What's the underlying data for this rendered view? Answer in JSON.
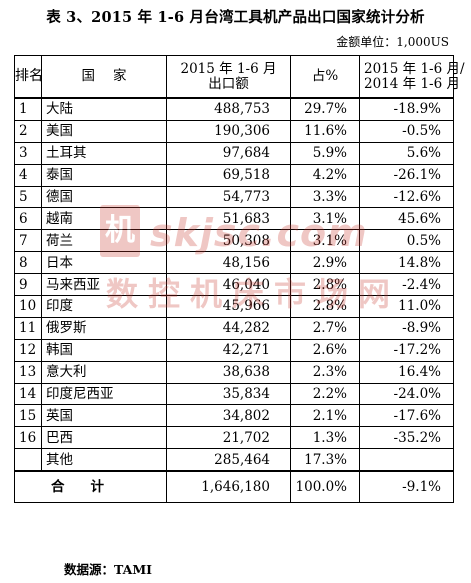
{
  "title": "表 3、2015 年 1-6 月台湾工具机产品出口国家统计分析",
  "unit_note": "金额单位：1,000US",
  "table": {
    "headers": {
      "rank": "排名",
      "country": "国家",
      "amount_line1": "2015 年 1-6 月",
      "amount_line2": "出口额",
      "share": "占%",
      "growth_line1": "2015 年 1-6 月/",
      "growth_line2": "2014 年 1-6 月"
    },
    "rows": [
      {
        "rank": "1",
        "country": "大陆",
        "amount": "488,753",
        "share": "29.7%",
        "growth": "-18.9%"
      },
      {
        "rank": "2",
        "country": "美国",
        "amount": "190,306",
        "share": "11.6%",
        "growth": "-0.5%"
      },
      {
        "rank": "3",
        "country": "土耳其",
        "amount": "97,684",
        "share": "5.9%",
        "growth": "5.6%"
      },
      {
        "rank": "4",
        "country": "泰国",
        "amount": "69,518",
        "share": "4.2%",
        "growth": "-26.1%"
      },
      {
        "rank": "5",
        "country": "德国",
        "amount": "54,773",
        "share": "3.3%",
        "growth": "-12.6%"
      },
      {
        "rank": "6",
        "country": "越南",
        "amount": "51,683",
        "share": "3.1%",
        "growth": "45.6%"
      },
      {
        "rank": "7",
        "country": "荷兰",
        "amount": "50,308",
        "share": "3.1%",
        "growth": "0.5%"
      },
      {
        "rank": "8",
        "country": "日本",
        "amount": "48,156",
        "share": "2.9%",
        "growth": "14.8%"
      },
      {
        "rank": "9",
        "country": "马来西亚",
        "amount": "46,040",
        "share": "2.8%",
        "growth": "-2.4%"
      },
      {
        "rank": "10",
        "country": "印度",
        "amount": "45,966",
        "share": "2.8%",
        "growth": "11.0%"
      },
      {
        "rank": "11",
        "country": "俄罗斯",
        "amount": "44,282",
        "share": "2.7%",
        "growth": "-8.9%"
      },
      {
        "rank": "12",
        "country": "韩国",
        "amount": "42,271",
        "share": "2.6%",
        "growth": "-17.2%"
      },
      {
        "rank": "13",
        "country": "意大利",
        "amount": "38,638",
        "share": "2.3%",
        "growth": "16.4%"
      },
      {
        "rank": "14",
        "country": "印度尼西亚",
        "amount": "35,834",
        "share": "2.2%",
        "growth": "-24.0%"
      },
      {
        "rank": "15",
        "country": "英国",
        "amount": "34,802",
        "share": "2.1%",
        "growth": "-17.6%"
      },
      {
        "rank": "16",
        "country": "巴西",
        "amount": "21,702",
        "share": "1.3%",
        "growth": "-35.2%"
      },
      {
        "rank": "",
        "country": "其他",
        "amount": "285,464",
        "share": "17.3%",
        "growth": ""
      }
    ],
    "total": {
      "label": "合计",
      "amount": "1,646,180",
      "share": "100.0%",
      "growth": "-9.1%"
    }
  },
  "source": "数据源：TAMI",
  "watermark": {
    "seal_char": "机",
    "url": "skjsc.com",
    "text": "数控机床市场网",
    "color": "#c8382e"
  }
}
